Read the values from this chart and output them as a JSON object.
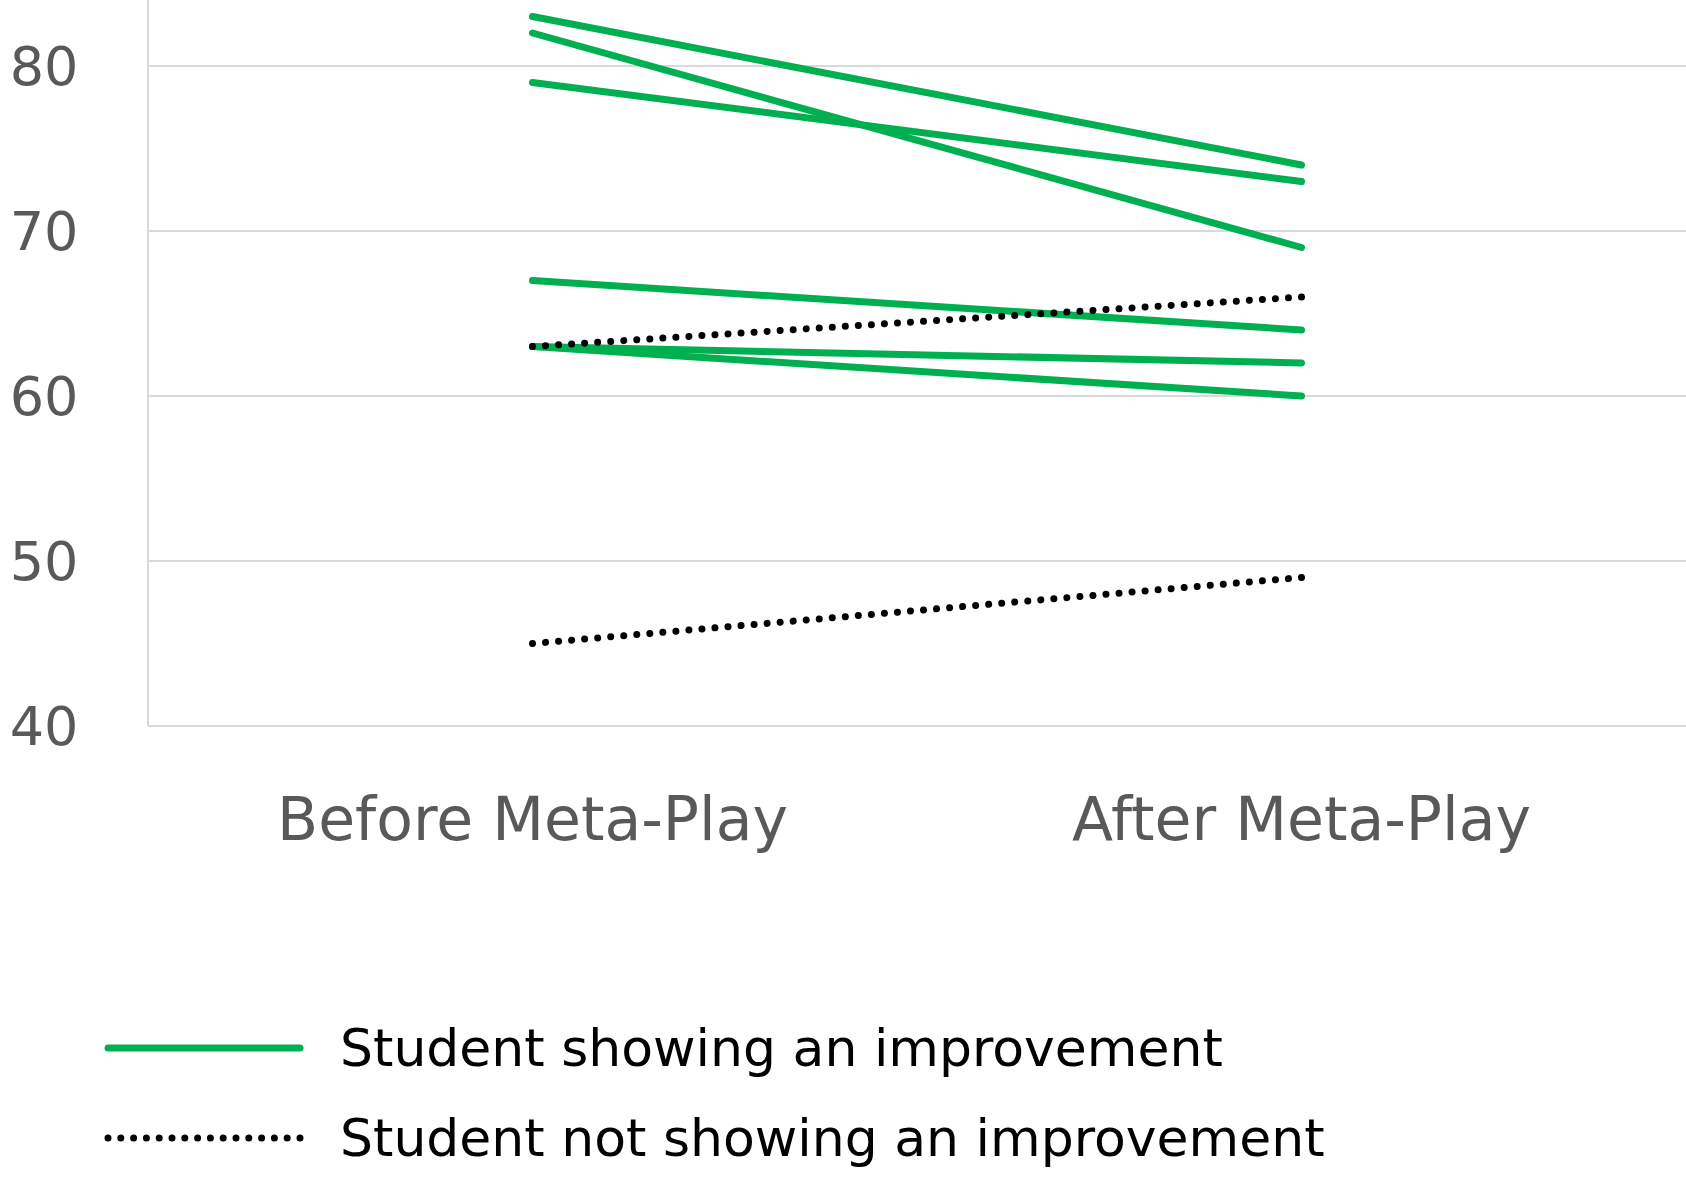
{
  "chart_data": {
    "type": "line",
    "categories": [
      "Before Meta-Play",
      "After Meta-Play"
    ],
    "series": [
      {
        "name": "Student showing an improvement",
        "color": "#00b050",
        "line_style": "solid",
        "values": [
          83,
          74
        ]
      },
      {
        "color": "#00b050",
        "line_style": "solid",
        "values": [
          82,
          69
        ]
      },
      {
        "color": "#00b050",
        "line_style": "solid",
        "values": [
          79,
          73
        ]
      },
      {
        "color": "#00b050",
        "line_style": "solid",
        "values": [
          67,
          64
        ]
      },
      {
        "color": "#00b050",
        "line_style": "solid",
        "values": [
          63,
          62
        ]
      },
      {
        "color": "#00b050",
        "line_style": "solid",
        "values": [
          63,
          60
        ]
      },
      {
        "name": "Student not showing an improvement",
        "color": "#000000",
        "line_style": "dotted",
        "values": [
          63,
          66
        ]
      },
      {
        "color": "#000000",
        "line_style": "dotted",
        "values": [
          45,
          49
        ]
      }
    ],
    "ylim": [
      40,
      84
    ],
    "yticks": [
      40,
      50,
      60,
      70,
      80
    ],
    "grid": "y",
    "legend": "bottom",
    "marker": "none"
  }
}
